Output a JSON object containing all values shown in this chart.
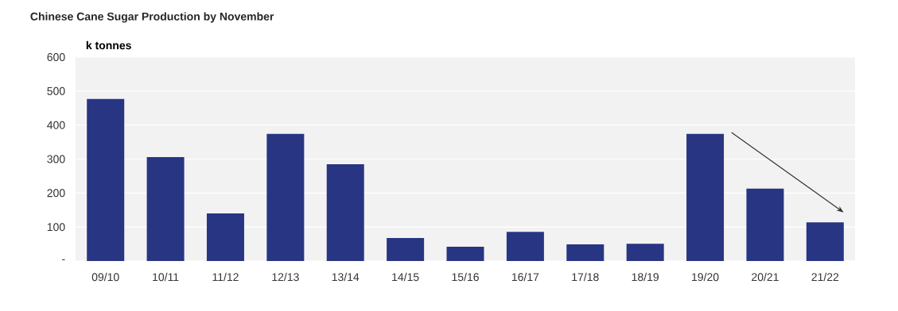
{
  "chart_data": {
    "type": "bar",
    "title": "Chinese Cane Sugar Production by November",
    "ylabel": "k tonnes",
    "categories": [
      "09/10",
      "10/11",
      "11/12",
      "12/13",
      "13/14",
      "14/15",
      "15/16",
      "16/17",
      "17/18",
      "18/19",
      "19/20",
      "20/21",
      "21/22"
    ],
    "values": [
      477,
      306,
      140,
      374,
      285,
      68,
      42,
      86,
      49,
      51,
      374,
      213,
      114
    ],
    "color": "#283583",
    "ylim": [
      0,
      600
    ],
    "yticks": [
      {
        "value": 0,
        "label": "-"
      },
      100,
      200,
      300,
      400,
      500,
      600
    ],
    "grid": "y"
  }
}
